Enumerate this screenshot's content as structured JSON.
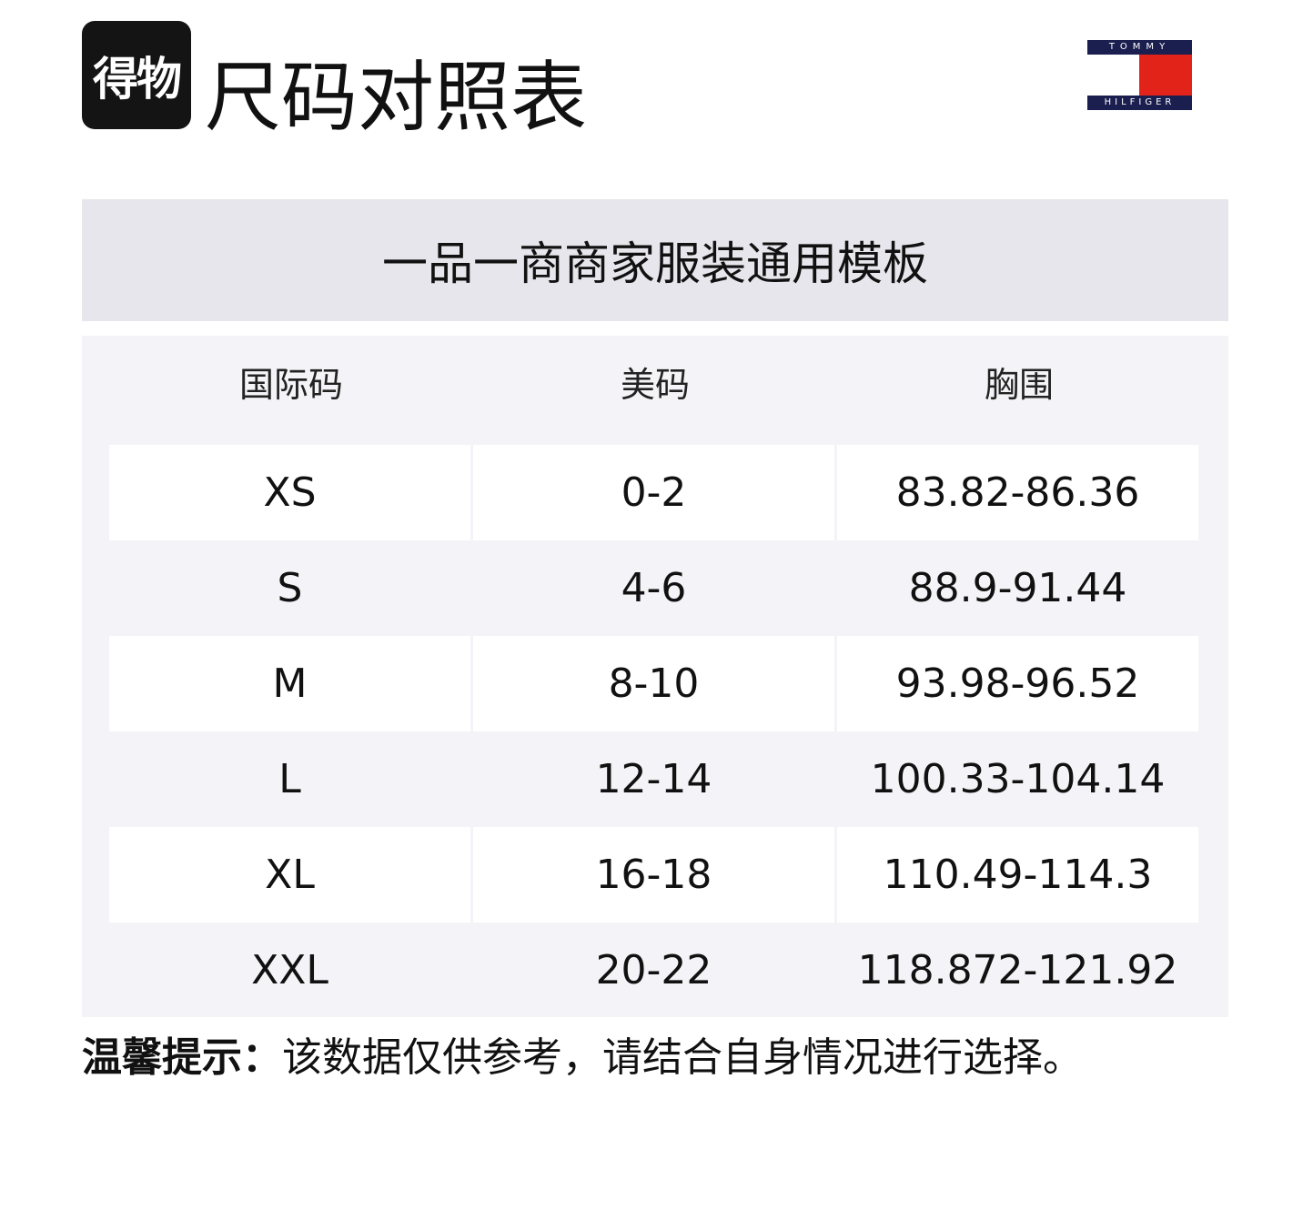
{
  "header": {
    "logo_text": "得物",
    "title": "尺码对照表",
    "brand_logo": {
      "top": "TOMMY",
      "bottom": "HILFIGER",
      "colors": {
        "navy": "#1b1f4f",
        "red": "#e2231a"
      }
    }
  },
  "banner": "一品一商商家服装通用模板",
  "table": {
    "columns": [
      "国际码",
      "美码",
      "胸围"
    ],
    "rows": [
      [
        "XS",
        "0-2",
        "83.82-86.36"
      ],
      [
        "S",
        "4-6",
        "88.9-91.44"
      ],
      [
        "M",
        "8-10",
        "93.98-96.52"
      ],
      [
        "L",
        "12-14",
        "100.33-104.14"
      ],
      [
        "XL",
        "16-18",
        "110.49-114.3"
      ],
      [
        "XXL",
        "20-22",
        "118.872-121.92"
      ]
    ]
  },
  "note": {
    "label": "温馨提示：",
    "text": "该数据仅供参考，请结合自身情况进行选择。"
  }
}
